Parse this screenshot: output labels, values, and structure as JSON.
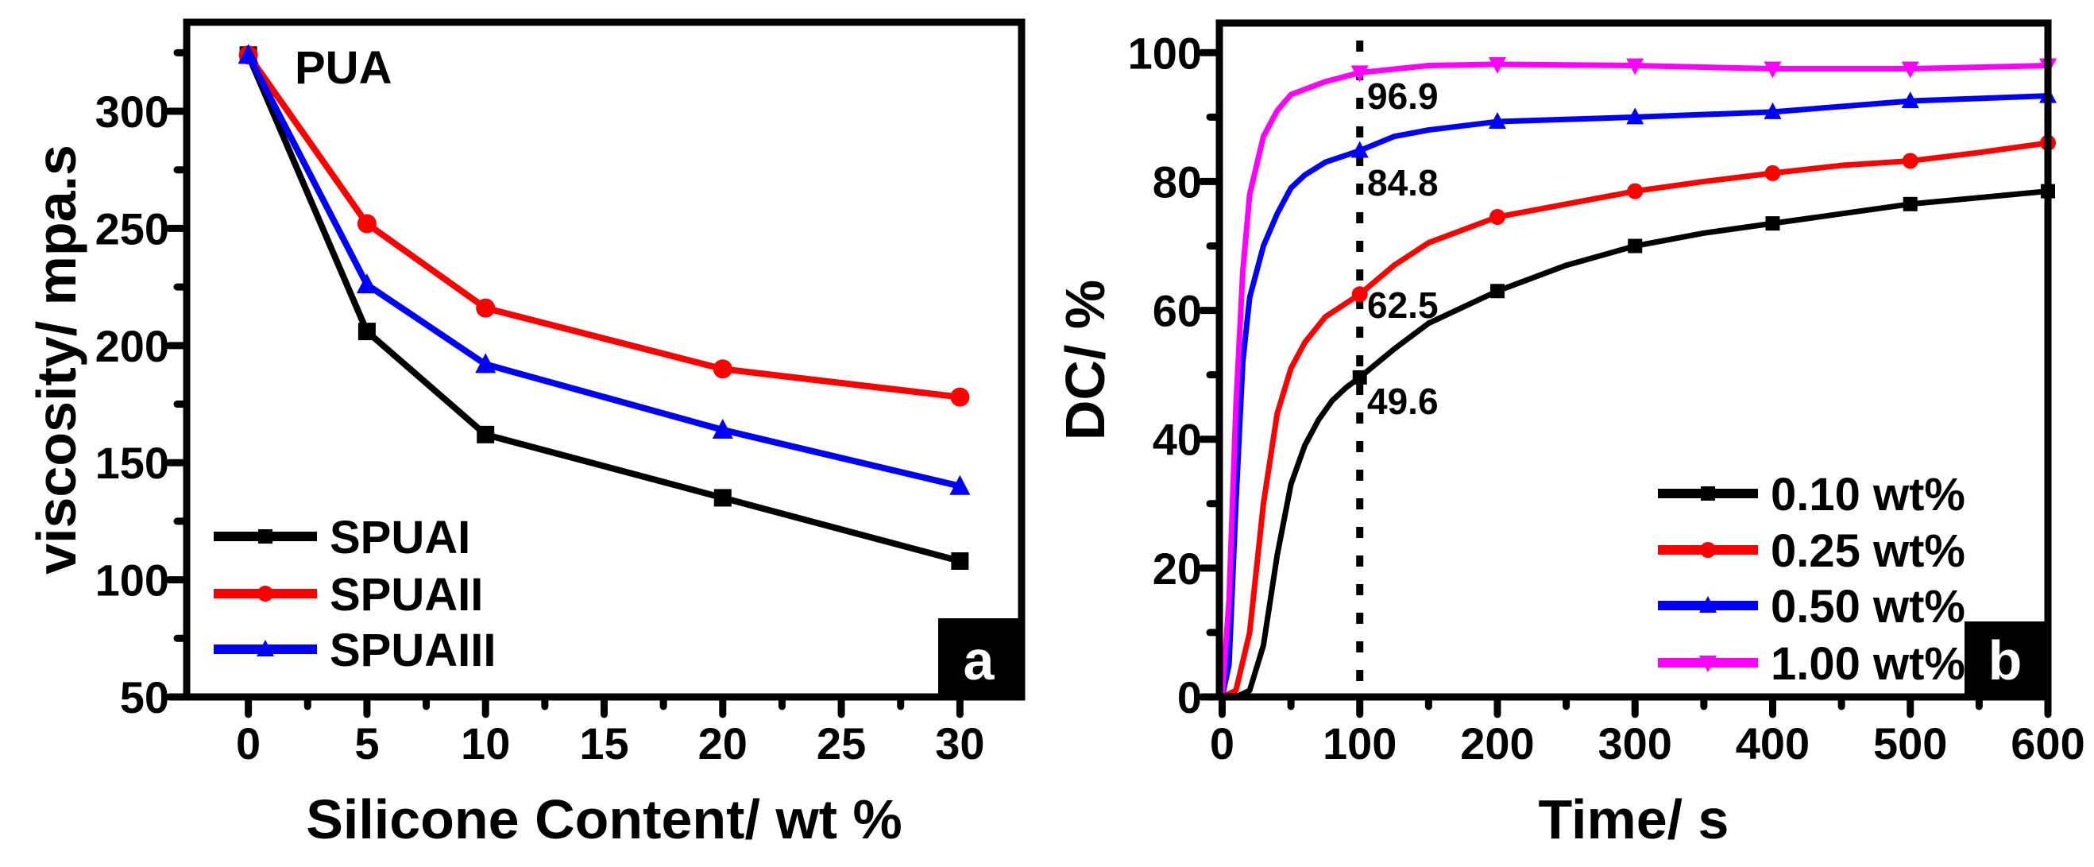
{
  "chart_data": [
    {
      "type": "line",
      "panel_label": "a",
      "annotation": "PUA",
      "xlabel": "Silicone Content/ wt %",
      "ylabel": "viscosity/ mpa.s",
      "xlim": [
        -2.6,
        32.6
      ],
      "ylim": [
        50,
        338
      ],
      "xticks": [
        0,
        5,
        10,
        15,
        20,
        25,
        30
      ],
      "yticks": [
        50,
        100,
        150,
        200,
        250,
        300
      ],
      "legend_position": "bottom-left",
      "x": [
        0,
        5,
        10,
        20,
        30
      ],
      "series": [
        {
          "name": "SPUAI",
          "color": "#000000",
          "marker": "square",
          "values": [
            324,
            206,
            162,
            135,
            108
          ]
        },
        {
          "name": "SPUAII",
          "color": "#ff0000",
          "marker": "circle",
          "values": [
            324,
            252,
            216,
            190,
            178
          ]
        },
        {
          "name": "SPUAIII",
          "color": "#0000ff",
          "marker": "triangle-up",
          "values": [
            324,
            226,
            192,
            164,
            140
          ]
        }
      ]
    },
    {
      "type": "line",
      "panel_label": "b",
      "xlabel": "Time/ s",
      "ylabel": "DC/ %",
      "xlim": [
        -2,
        600
      ],
      "ylim": [
        0,
        104.6
      ],
      "xticks": [
        0,
        100,
        200,
        300,
        400,
        500,
        600
      ],
      "yticks": [
        0,
        20,
        40,
        60,
        80,
        100
      ],
      "legend_position": "bottom-right",
      "reference_line_x": 100,
      "annotations": [
        "96.9",
        "84.8",
        "62.5",
        "49.6"
      ],
      "annotation_values": [
        96.9,
        84.8,
        62.5,
        49.6
      ],
      "series": [
        {
          "name": "0.10 wt%",
          "color": "#000000",
          "marker": "square",
          "x": [
            0,
            10,
            20,
            30,
            40,
            50,
            60,
            70,
            80,
            90,
            100,
            125,
            150,
            200,
            250,
            300,
            350,
            400,
            450,
            500,
            550,
            600
          ],
          "values": [
            0,
            0,
            1,
            8,
            22,
            33,
            39,
            43,
            46,
            48,
            49.6,
            54,
            58,
            63,
            67,
            70,
            72,
            73.5,
            75,
            76.5,
            77.5,
            78.5
          ]
        },
        {
          "name": "0.25 wt%",
          "color": "#ff0000",
          "marker": "circle",
          "x": [
            0,
            10,
            20,
            30,
            40,
            50,
            60,
            75,
            100,
            125,
            150,
            200,
            250,
            300,
            350,
            400,
            450,
            500,
            550,
            600
          ],
          "values": [
            0,
            1,
            10,
            30,
            44,
            51,
            55,
            59,
            62.5,
            67,
            70.5,
            74.5,
            76.5,
            78.5,
            80,
            81.3,
            82.5,
            83.2,
            84.5,
            86
          ]
        },
        {
          "name": "0.50 wt%",
          "color": "#0000ff",
          "marker": "triangle-up",
          "x": [
            0,
            5,
            10,
            15,
            20,
            30,
            40,
            50,
            60,
            75,
            100,
            125,
            150,
            200,
            300,
            400,
            500,
            600
          ],
          "values": [
            0,
            5,
            30,
            52,
            62,
            70,
            75,
            79,
            81,
            83,
            84.8,
            87,
            88,
            89.3,
            90,
            90.8,
            92.5,
            93.3
          ]
        },
        {
          "name": "1.00 wt%",
          "color": "#ff00ff",
          "marker": "triangle-down",
          "x": [
            0,
            5,
            10,
            15,
            20,
            30,
            40,
            50,
            75,
            100,
            150,
            200,
            300,
            400,
            500,
            600
          ],
          "values": [
            0,
            15,
            45,
            66,
            78,
            87,
            91,
            93.5,
            95.5,
            96.9,
            98,
            98.2,
            98,
            97.5,
            97.5,
            98
          ]
        }
      ]
    }
  ]
}
